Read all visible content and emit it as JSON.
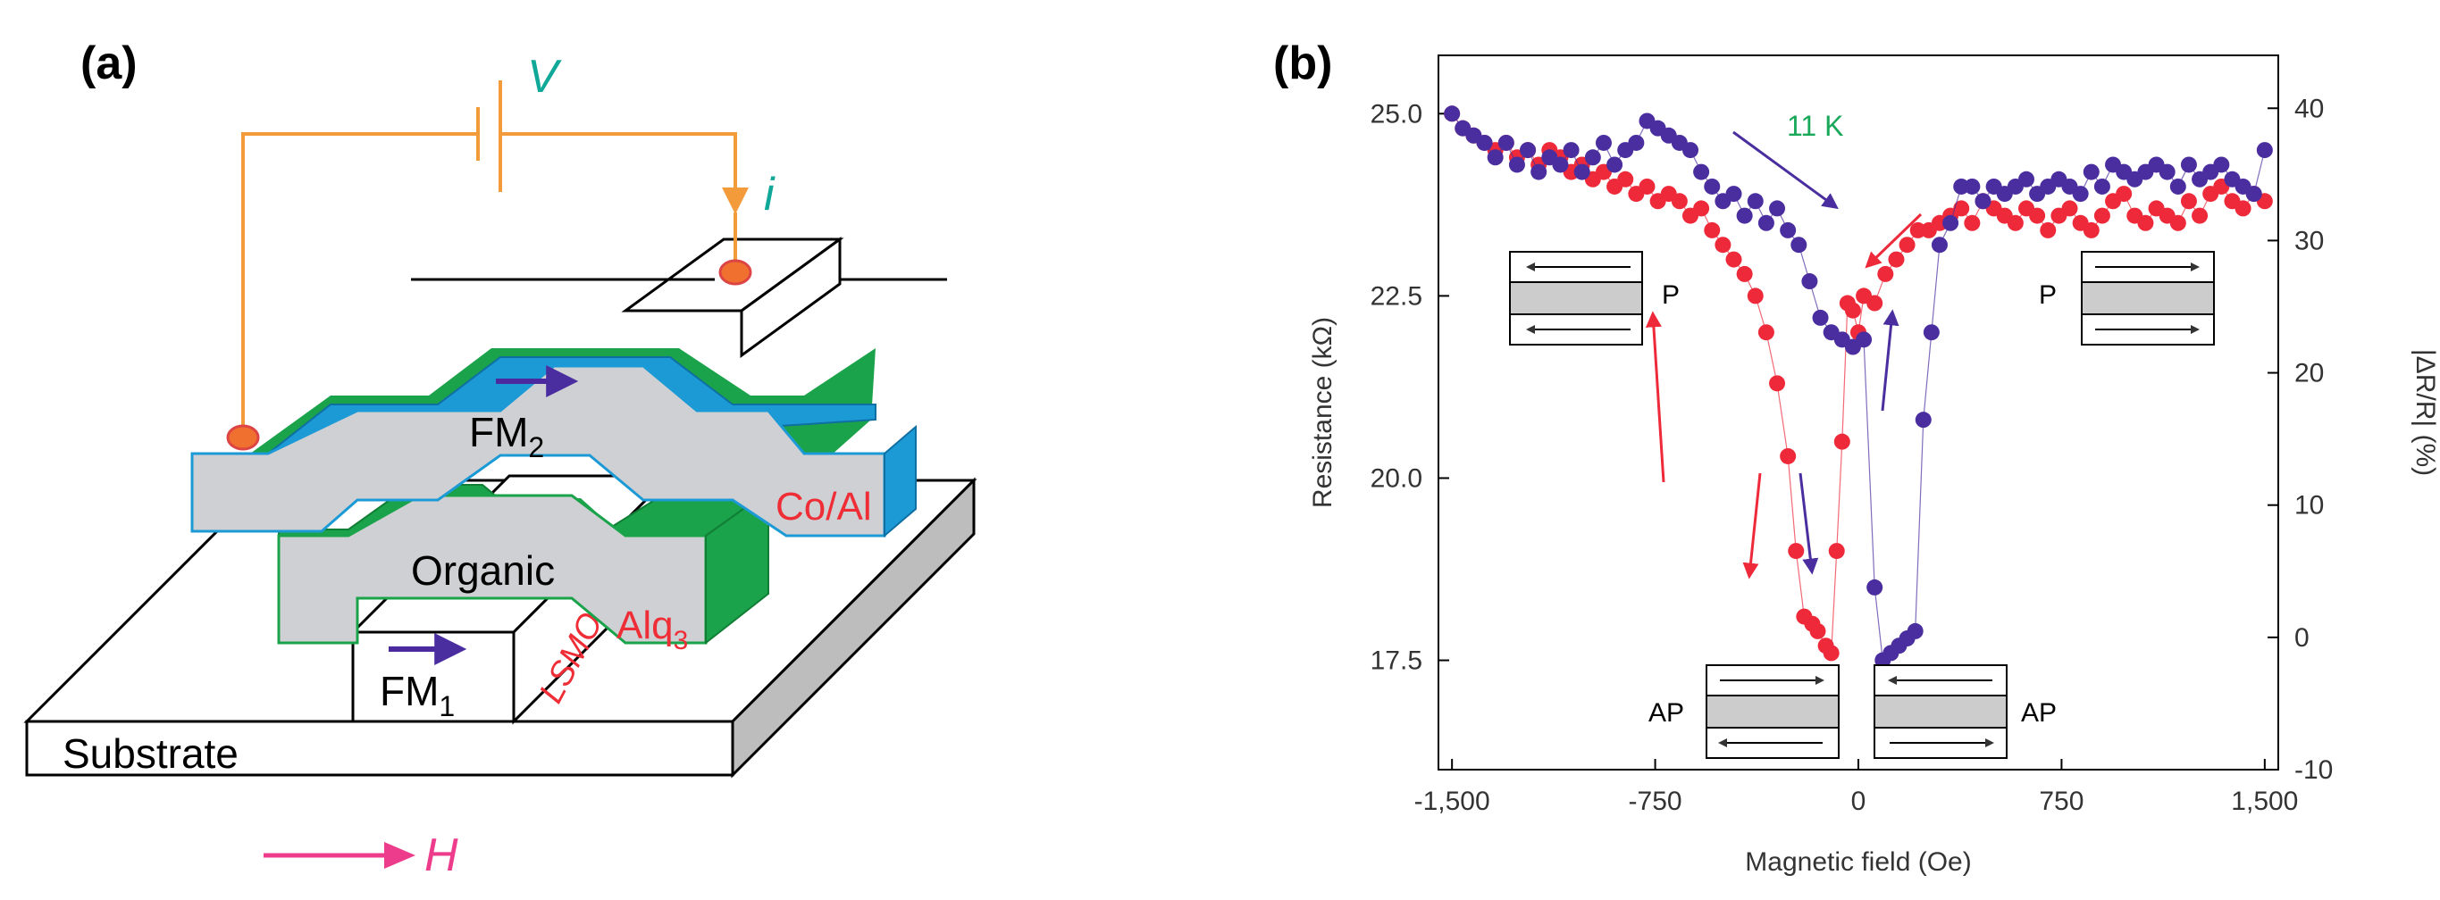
{
  "panel_a": {
    "label": "(a)",
    "voltage": "V",
    "current": "i",
    "fm2_main": "FM",
    "fm2_sub": "2",
    "fm2_material": "Co/Al",
    "organic": "Organic",
    "alq_main": "Alq",
    "alq_sub": "3",
    "fm1_main": "FM",
    "fm1_sub": "1",
    "fm1_material": "LSMO",
    "substrate": "Substrate",
    "field": "H",
    "colors": {
      "wire": "#f39a3a",
      "contact": "#f07030",
      "blue_layer": "#1c9ad6",
      "green_layer": "#1aa34a",
      "gray_fill": "#cfd0d3",
      "arrow": "#4b2aa0",
      "material_text": "#ef2d36",
      "teal_text": "#10a898",
      "field_color": "#ee3c8c"
    }
  },
  "panel_b": {
    "label": "(b)",
    "temperature_label": "11 K",
    "inset_labels": {
      "p_left": "P",
      "p_right": "P",
      "ap_left": "AP",
      "ap_right": "AP"
    },
    "chart_data": {
      "type": "scatter",
      "title": "",
      "xlabel": "Magnetic field (Oe)",
      "ylabel": "Resistance (kΩ)",
      "y2label": "|ΔR/R| (%)",
      "xlim": [
        -1550,
        1550
      ],
      "ylim": [
        16.0,
        25.8
      ],
      "y2lim": [
        -10,
        44
      ],
      "x_ticks": [
        -1500,
        -750,
        0,
        750,
        1500
      ],
      "x_tick_labels": [
        "-1,500",
        "-750",
        "0",
        "750",
        "1,500"
      ],
      "y_ticks": [
        17.5,
        20.0,
        22.5,
        25.0
      ],
      "y_tick_labels": [
        "17.5",
        "20.0",
        "22.5",
        "25.0"
      ],
      "y2_ticks": [
        -10,
        0,
        10,
        20,
        30,
        40
      ],
      "y2_tick_labels": [
        "-10",
        "0",
        "10",
        "20",
        "30",
        "40"
      ],
      "series": [
        {
          "name": "red sweep",
          "color": "#ee2a3a",
          "x": [
            -1500,
            -1460,
            -1420,
            -1380,
            -1340,
            -1300,
            -1260,
            -1220,
            -1180,
            -1140,
            -1100,
            -1060,
            -1020,
            -980,
            -940,
            -900,
            -860,
            -820,
            -780,
            -740,
            -700,
            -660,
            -620,
            -580,
            -540,
            -500,
            -460,
            -420,
            -380,
            -340,
            -300,
            -260,
            -230,
            -200,
            -170,
            -150,
            -120,
            -100,
            -80,
            -60,
            -40,
            -20,
            0,
            20,
            60,
            100,
            140,
            180,
            220,
            260,
            300,
            340,
            380,
            420,
            460,
            500,
            540,
            580,
            620,
            660,
            700,
            740,
            780,
            820,
            860,
            900,
            940,
            980,
            1020,
            1060,
            1100,
            1140,
            1180,
            1220,
            1260,
            1300,
            1340,
            1380,
            1420,
            1460,
            1500
          ],
          "y": [
            25.0,
            24.8,
            24.7,
            24.6,
            24.5,
            24.6,
            24.4,
            24.5,
            24.3,
            24.5,
            24.4,
            24.2,
            24.3,
            24.1,
            24.2,
            24.0,
            24.1,
            23.9,
            24.0,
            23.8,
            23.9,
            23.8,
            23.6,
            23.7,
            23.4,
            23.2,
            23.0,
            22.8,
            22.5,
            22.0,
            21.3,
            20.3,
            19.0,
            18.1,
            18.0,
            17.9,
            17.7,
            17.6,
            19.0,
            20.5,
            22.4,
            22.3,
            22.0,
            22.5,
            22.4,
            22.8,
            23.0,
            23.2,
            23.4,
            23.4,
            23.5,
            23.6,
            23.7,
            23.5,
            23.8,
            23.7,
            23.6,
            23.5,
            23.7,
            23.6,
            23.4,
            23.6,
            23.7,
            23.5,
            23.4,
            23.6,
            23.8,
            23.9,
            23.6,
            23.5,
            23.7,
            23.6,
            23.5,
            23.8,
            23.6,
            23.9,
            24.0,
            23.8,
            23.7,
            23.9,
            23.8
          ]
        },
        {
          "name": "purple sweep",
          "color": "#4a2ea0",
          "x": [
            -1500,
            -1460,
            -1420,
            -1380,
            -1340,
            -1300,
            -1260,
            -1220,
            -1180,
            -1140,
            -1100,
            -1060,
            -1020,
            -980,
            -940,
            -900,
            -860,
            -820,
            -780,
            -740,
            -700,
            -660,
            -620,
            -580,
            -540,
            -500,
            -460,
            -420,
            -380,
            -340,
            -300,
            -260,
            -220,
            -180,
            -140,
            -100,
            -60,
            -20,
            20,
            60,
            90,
            120,
            150,
            180,
            210,
            240,
            270,
            300,
            340,
            380,
            420,
            460,
            500,
            540,
            580,
            620,
            660,
            700,
            740,
            780,
            820,
            860,
            900,
            940,
            980,
            1020,
            1060,
            1100,
            1140,
            1180,
            1220,
            1260,
            1300,
            1340,
            1380,
            1420,
            1460,
            1500
          ],
          "y": [
            25.0,
            24.8,
            24.7,
            24.6,
            24.4,
            24.6,
            24.3,
            24.5,
            24.2,
            24.4,
            24.3,
            24.5,
            24.2,
            24.4,
            24.6,
            24.3,
            24.5,
            24.6,
            24.9,
            24.8,
            24.7,
            24.6,
            24.5,
            24.2,
            24.0,
            23.8,
            23.9,
            23.6,
            23.8,
            23.5,
            23.7,
            23.4,
            23.2,
            22.7,
            22.2,
            22.0,
            21.9,
            21.8,
            21.9,
            18.5,
            17.5,
            17.6,
            17.7,
            17.8,
            17.9,
            20.8,
            22.0,
            23.2,
            23.5,
            24.0,
            24.0,
            23.8,
            24.0,
            23.9,
            24.0,
            24.1,
            23.9,
            24.0,
            24.1,
            24.0,
            23.9,
            24.2,
            24.0,
            24.3,
            24.2,
            24.1,
            24.2,
            24.3,
            24.2,
            24.0,
            24.3,
            24.1,
            24.2,
            24.3,
            24.1,
            24.0,
            23.9,
            24.5
          ]
        }
      ],
      "annotations": [
        "11 K",
        "P",
        "P",
        "AP",
        "AP"
      ],
      "grid": false,
      "legend": "none"
    }
  }
}
